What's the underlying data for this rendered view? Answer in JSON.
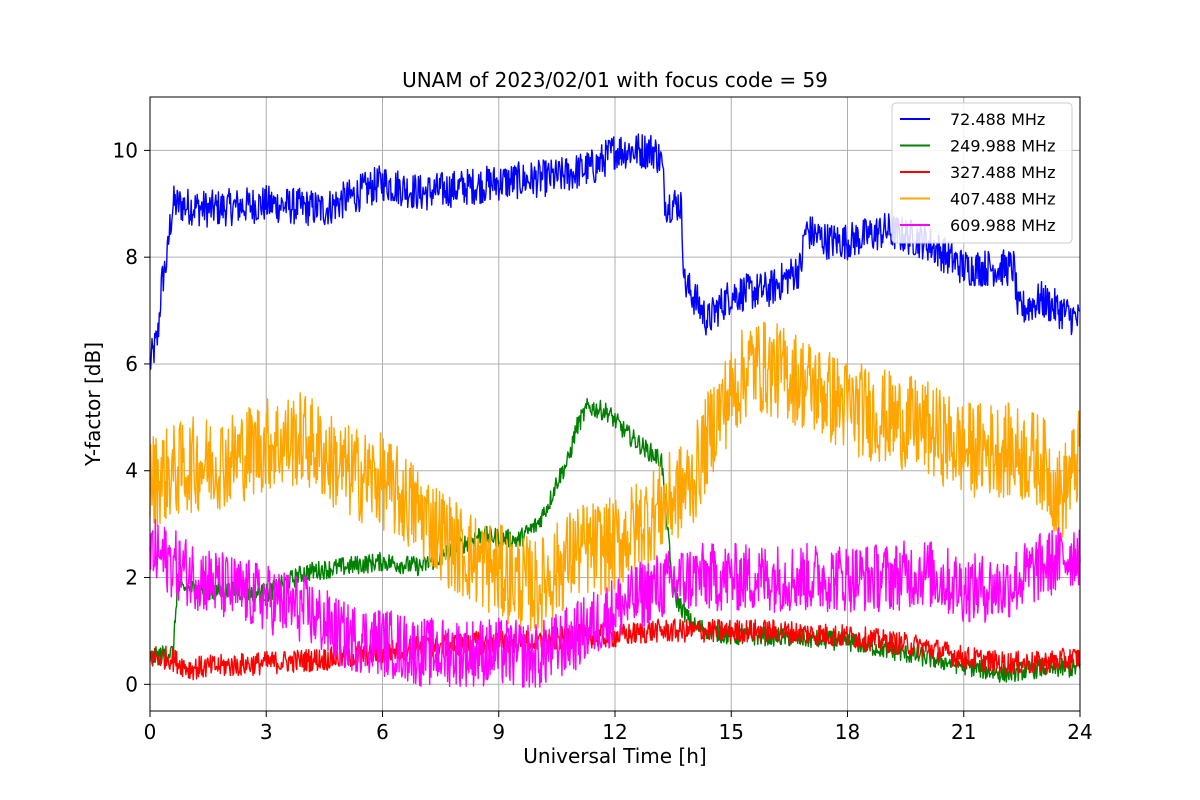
{
  "chart_data": {
    "type": "line",
    "title": "UNAM of 2023/02/01 with focus code = 59",
    "xlabel": "Universal Time [h]",
    "ylabel": "Y-factor [dB]",
    "xlim": [
      0,
      24
    ],
    "ylim": [
      -0.5,
      11.0
    ],
    "xticks": [
      0,
      3,
      6,
      9,
      12,
      15,
      18,
      21,
      24
    ],
    "yticks": [
      0,
      2,
      4,
      6,
      8,
      10
    ],
    "grid": true,
    "legend_position": "top-right",
    "series": [
      {
        "name": "72.488 MHz",
        "color": "#0000ff",
        "noise": 0.35,
        "points": [
          [
            0,
            6.0
          ],
          [
            0.2,
            6.5
          ],
          [
            0.3,
            7.5
          ],
          [
            0.45,
            8.0
          ],
          [
            0.5,
            8.5
          ],
          [
            0.6,
            9.0
          ],
          [
            1.5,
            8.9
          ],
          [
            3,
            9.0
          ],
          [
            4.5,
            8.9
          ],
          [
            6,
            9.4
          ],
          [
            7,
            9.2
          ],
          [
            9,
            9.4
          ],
          [
            10.5,
            9.5
          ],
          [
            11.5,
            9.7
          ],
          [
            12,
            10.0
          ],
          [
            13,
            10.0
          ],
          [
            13.2,
            9.8
          ],
          [
            13.3,
            9.0
          ],
          [
            13.7,
            9.0
          ],
          [
            13.8,
            7.5
          ],
          [
            14,
            7.3
          ],
          [
            14.4,
            6.8
          ],
          [
            14.6,
            7.0
          ],
          [
            15,
            7.3
          ],
          [
            16,
            7.4
          ],
          [
            16.8,
            7.8
          ],
          [
            16.9,
            8.5
          ],
          [
            17.5,
            8.3
          ],
          [
            18,
            8.3
          ],
          [
            19,
            8.5
          ],
          [
            20,
            8.3
          ],
          [
            21,
            7.8
          ],
          [
            22.3,
            7.8
          ],
          [
            22.4,
            7.0
          ],
          [
            23,
            7.2
          ],
          [
            24,
            6.8
          ]
        ]
      },
      {
        "name": "249.988 MHz",
        "color": "#008000",
        "noise": 0.18,
        "points": [
          [
            0,
            0.5
          ],
          [
            0.6,
            0.6
          ],
          [
            0.7,
            1.8
          ],
          [
            3,
            1.7
          ],
          [
            4,
            2.1
          ],
          [
            5,
            2.2
          ],
          [
            6,
            2.3
          ],
          [
            7,
            2.2
          ],
          [
            7.8,
            2.5
          ],
          [
            8.5,
            2.8
          ],
          [
            9.5,
            2.7
          ],
          [
            10,
            3.0
          ],
          [
            10.3,
            3.4
          ],
          [
            10.5,
            3.8
          ],
          [
            10.8,
            4.2
          ],
          [
            11,
            4.8
          ],
          [
            11.3,
            5.2
          ],
          [
            11.8,
            5.1
          ],
          [
            12.3,
            4.7
          ],
          [
            12.8,
            4.4
          ],
          [
            13.2,
            4.2
          ],
          [
            13.5,
            1.7
          ],
          [
            14,
            1.1
          ],
          [
            15,
            0.9
          ],
          [
            16,
            0.9
          ],
          [
            18,
            0.8
          ],
          [
            20,
            0.5
          ],
          [
            22,
            0.2
          ],
          [
            23,
            0.3
          ],
          [
            24,
            0.3
          ]
        ]
      },
      {
        "name": "327.488 MHz",
        "color": "#ff0000",
        "noise": 0.22,
        "points": [
          [
            0,
            0.5
          ],
          [
            0.5,
            0.5
          ],
          [
            1,
            0.3
          ],
          [
            3,
            0.4
          ],
          [
            5,
            0.5
          ],
          [
            7,
            0.7
          ],
          [
            9,
            0.8
          ],
          [
            10,
            0.8
          ],
          [
            11,
            0.9
          ],
          [
            12,
            0.9
          ],
          [
            13,
            1.0
          ],
          [
            14,
            1.0
          ],
          [
            16,
            1.0
          ],
          [
            18,
            0.9
          ],
          [
            20,
            0.7
          ],
          [
            21,
            0.5
          ],
          [
            22,
            0.4
          ],
          [
            23,
            0.4
          ],
          [
            24,
            0.5
          ]
        ]
      },
      {
        "name": "407.488 MHz",
        "color": "#ffa500",
        "noise": 0.9,
        "points": [
          [
            0,
            3.8
          ],
          [
            1,
            4.1
          ],
          [
            2,
            4.2
          ],
          [
            3,
            4.5
          ],
          [
            4,
            4.6
          ],
          [
            5,
            4.0
          ],
          [
            6,
            3.8
          ],
          [
            7,
            3.2
          ],
          [
            8,
            2.5
          ],
          [
            9,
            2.1
          ],
          [
            10,
            1.8
          ],
          [
            11,
            2.5
          ],
          [
            12,
            2.6
          ],
          [
            13,
            3.2
          ],
          [
            14,
            3.8
          ],
          [
            14.6,
            5.0
          ],
          [
            15.5,
            6.0
          ],
          [
            16.5,
            5.8
          ],
          [
            18,
            5.2
          ],
          [
            19,
            5.0
          ],
          [
            20,
            4.8
          ],
          [
            21,
            4.4
          ],
          [
            22,
            4.4
          ],
          [
            23,
            4.2
          ],
          [
            23.5,
            3.5
          ],
          [
            24,
            4.3
          ]
        ]
      },
      {
        "name": "609.988 MHz",
        "color": "#ff00ff",
        "noise": 0.65,
        "points": [
          [
            0,
            2.5
          ],
          [
            1,
            2.1
          ],
          [
            2,
            1.8
          ],
          [
            3,
            1.6
          ],
          [
            4,
            1.4
          ],
          [
            5,
            0.9
          ],
          [
            6,
            0.8
          ],
          [
            7,
            0.6
          ],
          [
            8,
            0.6
          ],
          [
            9,
            0.6
          ],
          [
            10,
            0.5
          ],
          [
            11,
            0.9
          ],
          [
            12,
            1.4
          ],
          [
            13,
            1.8
          ],
          [
            14,
            2.0
          ],
          [
            15,
            2.0
          ],
          [
            16,
            2.0
          ],
          [
            17,
            2.0
          ],
          [
            18,
            2.0
          ],
          [
            19,
            2.0
          ],
          [
            20,
            2.1
          ],
          [
            21,
            1.8
          ],
          [
            22,
            1.8
          ],
          [
            23,
            2.2
          ],
          [
            24,
            2.5
          ]
        ]
      }
    ]
  }
}
